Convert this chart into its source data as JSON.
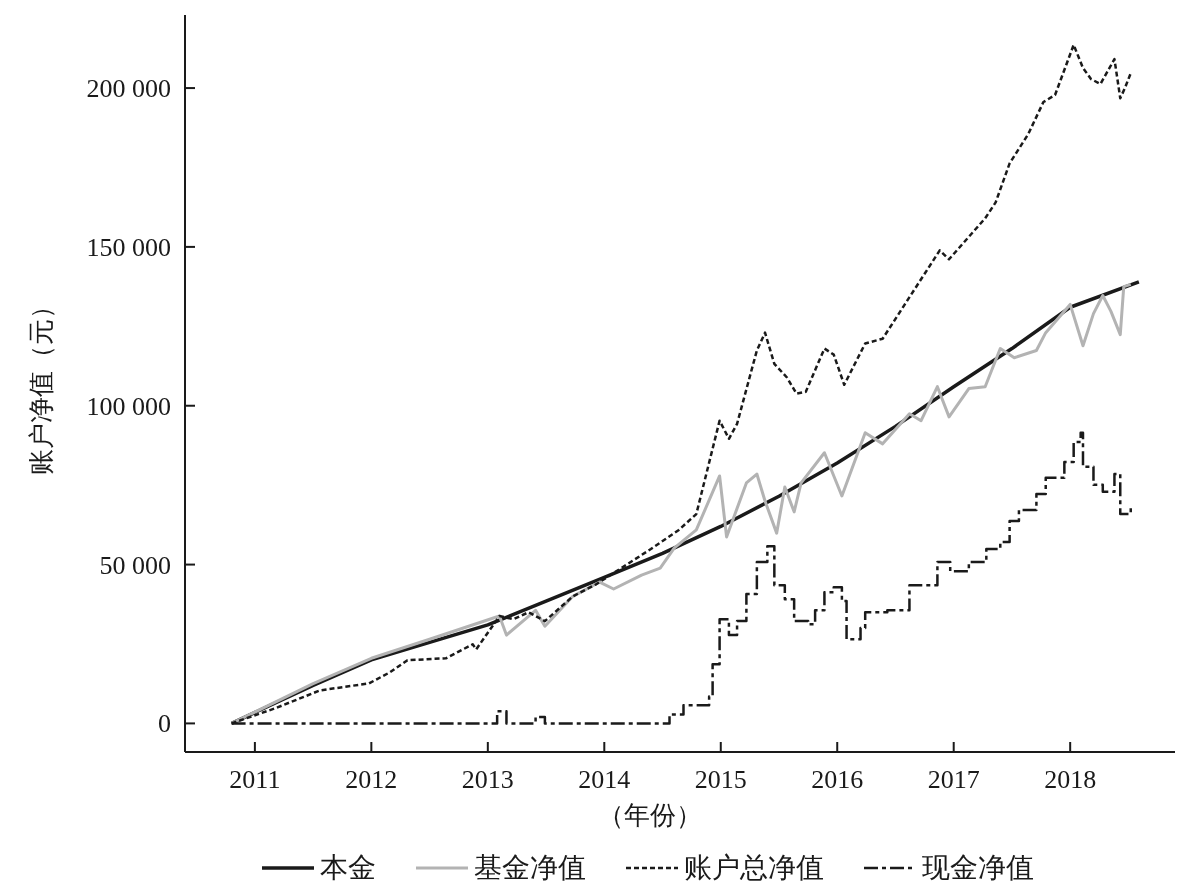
{
  "chart_data": {
    "type": "line",
    "xlabel": "（年份）",
    "ylabel": "账户净值（元）",
    "xlim": [
      2010.4,
      2018.9
    ],
    "xticks": [
      2011,
      2012,
      2013,
      2014,
      2015,
      2016,
      2017,
      2018
    ],
    "ylim": [
      -9000,
      223000
    ],
    "yticks": [
      0,
      {
        "value": 50000,
        "label": "50 000"
      },
      {
        "value": 100000,
        "label": "100 000"
      },
      {
        "value": 150000,
        "label": "150 000"
      },
      {
        "value": 200000,
        "label": "200 000"
      }
    ],
    "grid": false,
    "legend": "bottom",
    "marker": "none",
    "series": [
      {
        "name": "本金",
        "color": "#1a1a1a",
        "line_style": "solid",
        "x": [
          2010.8,
          2011.5,
          2012,
          2012.5,
          2013,
          2013.5,
          2014,
          2014.5,
          2015,
          2015.5,
          2016,
          2016.5,
          2017,
          2017.5,
          2018,
          2018.59
        ],
        "values": [
          0,
          12000,
          20000,
          25500,
          31000,
          38500,
          46000,
          53500,
          62000,
          71500,
          82000,
          93500,
          106000,
          118000,
          131000,
          139000
        ]
      },
      {
        "name": "基金净值",
        "color": "#b3b3b3",
        "line_style": "solid",
        "x": [
          2010.8,
          2011.5,
          2012,
          2012.5,
          2013.1,
          2013.16,
          2013.41,
          2013.49,
          2013.73,
          2013.96,
          2014.08,
          2014.32,
          2014.48,
          2014.6,
          2014.79,
          2014.99,
          2015.05,
          2015.22,
          2015.31,
          2015.38,
          2015.48,
          2015.55,
          2015.63,
          2015.69,
          2015.89,
          2016.04,
          2016.24,
          2016.39,
          2016.62,
          2016.72,
          2016.86,
          2016.96,
          2017.13,
          2017.27,
          2017.4,
          2017.52,
          2017.71,
          2017.79,
          2018.0,
          2018.11,
          2018.2,
          2018.28,
          2018.35,
          2018.43,
          2018.46,
          2018.52
        ],
        "values": [
          0,
          12500,
          20500,
          26500,
          33800,
          27800,
          35600,
          30600,
          40000,
          44500,
          42300,
          46700,
          48900,
          55200,
          60900,
          77900,
          58700,
          75700,
          78500,
          70000,
          59900,
          74400,
          66600,
          75700,
          85200,
          71600,
          91500,
          88000,
          97500,
          95300,
          106000,
          96500,
          105400,
          106000,
          118000,
          115100,
          117400,
          123000,
          131900,
          118900,
          129000,
          134700,
          129700,
          122400,
          137500,
          138200
        ]
      },
      {
        "name": "账户总净值",
        "color": "#1a1a1a",
        "line_style": "dashed",
        "x": [
          2010.8,
          2011.17,
          2011.56,
          2011.98,
          2012.16,
          2012.31,
          2012.64,
          2012.87,
          2012.9,
          2013.1,
          2013.22,
          2013.35,
          2013.49,
          2013.73,
          2013.93,
          2014.4,
          2014.64,
          2014.79,
          2014.99,
          2015.07,
          2015.14,
          2015.31,
          2015.38,
          2015.46,
          2015.57,
          2015.65,
          2015.73,
          2015.89,
          2015.97,
          2016.06,
          2016.24,
          2016.39,
          2016.64,
          2016.88,
          2016.96,
          2017.27,
          2017.36,
          2017.48,
          2017.64,
          2017.77,
          2017.87,
          2018.03,
          2018.11,
          2018.18,
          2018.26,
          2018.38,
          2018.43,
          2018.47,
          2018.52
        ],
        "values": [
          0,
          4700,
          10400,
          12600,
          16100,
          19900,
          20500,
          24900,
          23300,
          33800,
          32800,
          35000,
          32200,
          40000,
          43800,
          54900,
          60900,
          65900,
          95300,
          89600,
          94300,
          117400,
          123000,
          113200,
          108800,
          103800,
          104400,
          118000,
          116100,
          106600,
          119600,
          121100,
          135300,
          148900,
          146100,
          159000,
          164000,
          176300,
          185500,
          195600,
          197800,
          213600,
          206300,
          202800,
          201300,
          209100,
          196800,
          200000,
          204700
        ]
      },
      {
        "name": "现金净值",
        "color": "#1a1a1a",
        "type": "step",
        "line_style": "dashdot",
        "x": [
          2010.8,
          2013.08,
          2013.16,
          2013.41,
          2013.49,
          2014.56,
          2014.68,
          2014.9,
          2014.93,
          2014.99,
          2015.07,
          2015.14,
          2015.22,
          2015.31,
          2015.4,
          2015.46,
          2015.55,
          2015.63,
          2015.75,
          2015.81,
          2015.89,
          2015.97,
          2016.04,
          2016.08,
          2016.2,
          2016.24,
          2016.43,
          2016.62,
          2016.86,
          2016.97,
          2017.13,
          2017.28,
          2017.4,
          2017.48,
          2017.56,
          2017.71,
          2017.79,
          2017.95,
          2018.03,
          2018.09,
          2018.11,
          2018.2,
          2018.28,
          2018.38,
          2018.43,
          2018.52
        ],
        "values": [
          0,
          3800,
          0,
          2000,
          0,
          2800,
          5700,
          8500,
          18600,
          32800,
          27800,
          32200,
          40700,
          50800,
          55800,
          43500,
          39100,
          32200,
          31200,
          35600,
          41300,
          42900,
          38500,
          26500,
          30000,
          35000,
          35600,
          43500,
          50800,
          47900,
          50800,
          54900,
          57100,
          63700,
          67200,
          72200,
          77300,
          82300,
          88600,
          91500,
          80800,
          75100,
          72900,
          78500,
          65900,
          68800
        ]
      }
    ]
  }
}
